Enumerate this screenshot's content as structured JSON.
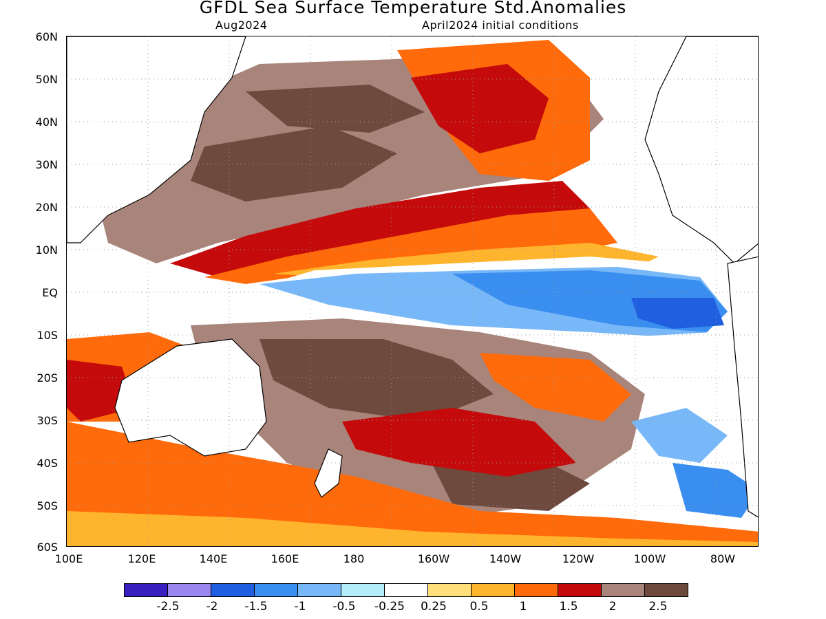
{
  "header": {
    "title": "GFDL Sea Surface Temperature Std.Anomalies",
    "subtitle_left": "Aug2024",
    "subtitle_right": "April2024 initial conditions"
  },
  "map": {
    "lon_range": [
      "100E",
      "70W"
    ],
    "lat_range": [
      "60S",
      "60N"
    ],
    "y_labels": [
      "60N",
      "50N",
      "40N",
      "30N",
      "20N",
      "10N",
      "EQ",
      "10S",
      "20S",
      "30S",
      "40S",
      "50S",
      "60S"
    ],
    "x_labels": [
      "100E",
      "120E",
      "140E",
      "160E",
      "180",
      "160W",
      "140W",
      "120W",
      "100W",
      "80W"
    ],
    "land_color": "#ffffff",
    "grid": "dotted"
  },
  "legend": {
    "colors": [
      "#3a1fc0",
      "#9a88f0",
      "#1f5fe0",
      "#3a8ef0",
      "#78b8f8",
      "#b4ecfa",
      "#ffffff",
      "#ffe07a",
      "#ffb42e",
      "#ff6a0a",
      "#c40a0a",
      "#a8847a",
      "#6e4a3e"
    ],
    "labels": [
      "-2.5",
      "-2",
      "-1.5",
      "-1",
      "-0.5",
      "-0.25",
      "0.25",
      "0.5",
      "1",
      "1.5",
      "2",
      "2.5"
    ]
  }
}
